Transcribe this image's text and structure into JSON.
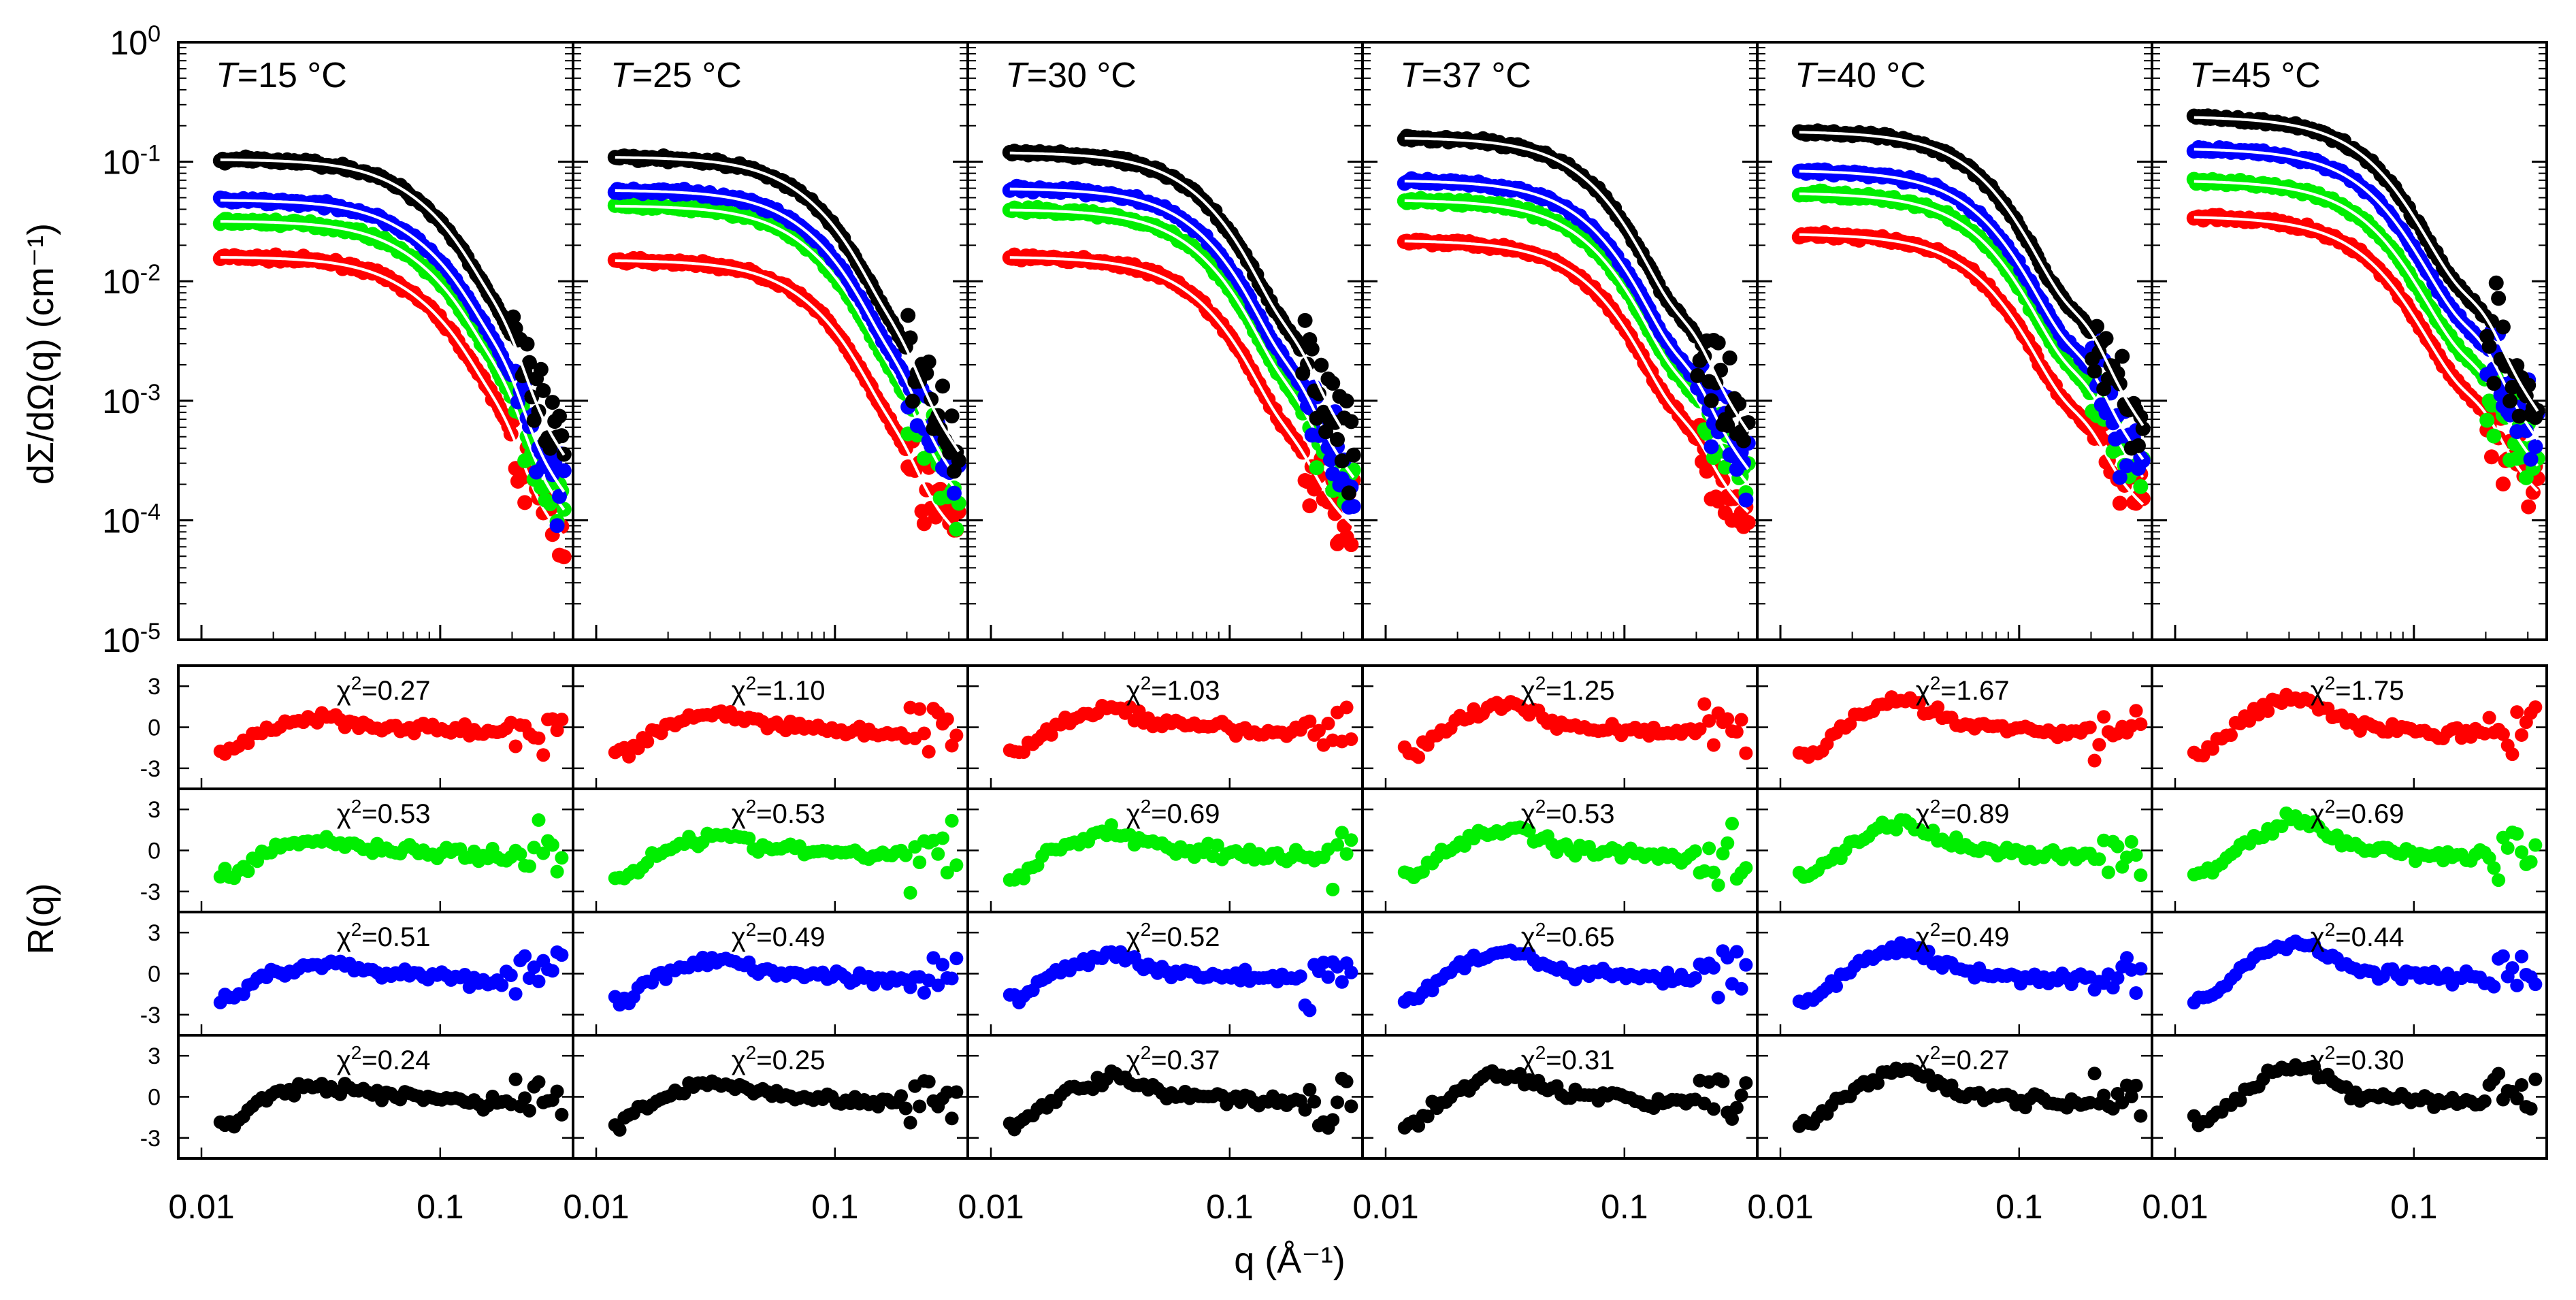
{
  "chart_data": {
    "type": "scatter",
    "xlabel": "q (Å⁻¹)",
    "ylabel_top": "dΣ/dΩ(q) (cm⁻¹)",
    "ylabel_bottom": "R(q)",
    "x_scale": "log",
    "x_range": [
      0.008,
      0.36
    ],
    "x_ticks": [
      0.01,
      0.1
    ],
    "x_tick_labels": [
      "0.01",
      "0.1"
    ],
    "y_top_scale": "log",
    "y_top_range": [
      1e-05,
      1
    ],
    "y_top_tick_labels": [
      {
        "base": "10",
        "exp": "0"
      },
      {
        "base": "10",
        "exp": "-1"
      },
      {
        "base": "10",
        "exp": "-2"
      },
      {
        "base": "10",
        "exp": "-3"
      },
      {
        "base": "10",
        "exp": "-4"
      },
      {
        "base": "10",
        "exp": "-5"
      }
    ],
    "residual_range": [
      -4.5,
      4.5
    ],
    "residual_tick_labels": [
      "3",
      "0",
      "-3"
    ],
    "series_colors": [
      "#ff0000",
      "#00ee00",
      "#0000ff",
      "#000000"
    ],
    "fit_line_color": "#ffffff",
    "panels": [
      {
        "temp_prefix": "T",
        "temp_value": "=15 °C",
        "I0": [
          0.016,
          0.032,
          0.048,
          0.105
        ],
        "chi2": [
          "0.27",
          "0.53",
          "0.51",
          "0.24"
        ]
      },
      {
        "temp_prefix": "T",
        "temp_value": "=25 °C",
        "I0": [
          0.015,
          0.043,
          0.058,
          0.11
        ],
        "chi2": [
          "1.10",
          "0.53",
          "0.49",
          "0.25"
        ]
      },
      {
        "temp_prefix": "T",
        "temp_value": "=30 °C",
        "I0": [
          0.016,
          0.04,
          0.06,
          0.12
        ],
        "chi2": [
          "1.03",
          "0.69",
          "0.52",
          "0.37"
        ]
      },
      {
        "temp_prefix": "T",
        "temp_value": "=37 °C",
        "I0": [
          0.022,
          0.048,
          0.07,
          0.16
        ],
        "chi2": [
          "1.25",
          "0.53",
          "0.65",
          "0.31"
        ]
      },
      {
        "temp_prefix": "T",
        "temp_value": "=40 °C",
        "I0": [
          0.025,
          0.055,
          0.085,
          0.18
        ],
        "chi2": [
          "1.67",
          "0.89",
          "0.49",
          "0.27"
        ]
      },
      {
        "temp_prefix": "T",
        "temp_value": "=45 °C",
        "I0": [
          0.035,
          0.07,
          0.13,
          0.24
        ],
        "chi2": [
          "1.75",
          "0.69",
          "0.44",
          "0.30"
        ]
      }
    ]
  }
}
